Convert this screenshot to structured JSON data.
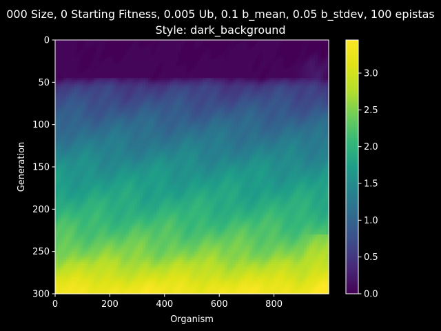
{
  "chart_data": {
    "type": "heatmap",
    "title": "000 Size, 0 Starting Fitness, 0.005 Ub, 0.1 b_mean, 0.05 b_stdev, 100 epistas",
    "subtitle": "Style: dark_background",
    "xlabel": "Organism",
    "ylabel": "Generation",
    "xlim": [
      0,
      1000
    ],
    "ylim": [
      0,
      300
    ],
    "y_inverted": true,
    "x_ticks": [
      "0",
      "200",
      "400",
      "600",
      "800"
    ],
    "y_ticks": [
      "0",
      "50",
      "100",
      "150",
      "200",
      "250",
      "300"
    ],
    "colorbar": {
      "colormap": "viridis",
      "vmin": 0.0,
      "vmax": 3.45,
      "ticks": [
        "0.0",
        "0.5",
        "1.0",
        "1.5",
        "2.0",
        "2.5",
        "3.0"
      ]
    },
    "grid": false,
    "value_profile": {
      "generations": [
        0,
        20,
        45,
        55,
        100,
        150,
        200,
        230,
        255,
        275,
        290,
        300
      ],
      "fitness": [
        0.0,
        0.05,
        0.15,
        0.55,
        1.05,
        1.55,
        1.95,
        2.25,
        2.55,
        2.9,
        3.2,
        3.35
      ]
    }
  },
  "colors": {
    "background": "#000000",
    "foreground": "#ffffff"
  }
}
